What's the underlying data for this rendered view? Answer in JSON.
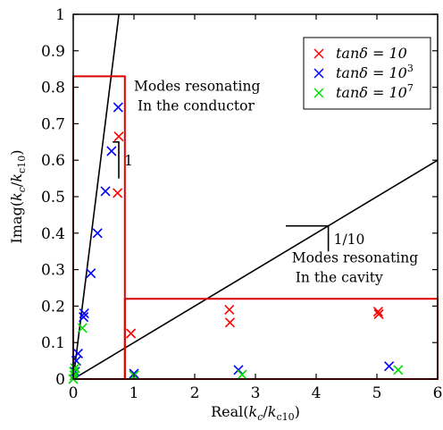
{
  "chart_data": {
    "type": "scatter",
    "xlabel": "Real(k_c/k_c10)",
    "ylabel": "Imag(k_c/k_c10)",
    "xlim": [
      0,
      6
    ],
    "ylim": [
      0,
      1
    ],
    "x_ticks": [
      "0",
      "1",
      "2",
      "3",
      "4",
      "5",
      "6"
    ],
    "y_ticks": [
      "0",
      "0.1",
      "0.2",
      "0.3",
      "0.4",
      "0.5",
      "0.6",
      "0.7",
      "0.8",
      "0.9",
      "1"
    ],
    "legend_position": "top-right",
    "series": [
      {
        "name": "tanδ = 10",
        "name_parts": {
          "base": "tanδ = 10",
          "sup": ""
        },
        "color": "#ff0000",
        "marker": "x",
        "points": [
          [
            0.75,
            0.665
          ],
          [
            0.73,
            0.51
          ],
          [
            0.95,
            0.125
          ],
          [
            2.57,
            0.19
          ],
          [
            2.58,
            0.155
          ],
          [
            5.02,
            0.185
          ],
          [
            5.03,
            0.178
          ],
          [
            0.02,
            0.01
          ]
        ]
      },
      {
        "name": "tanδ = 10^3",
        "name_parts": {
          "base": "tanδ = 10",
          "sup": "3"
        },
        "color": "#0000ff",
        "marker": "x",
        "points": [
          [
            0.74,
            0.745
          ],
          [
            0.63,
            0.625
          ],
          [
            0.53,
            0.515
          ],
          [
            0.4,
            0.4
          ],
          [
            0.29,
            0.29
          ],
          [
            0.18,
            0.18
          ],
          [
            0.17,
            0.17
          ],
          [
            0.08,
            0.07
          ],
          [
            0.05,
            0.05
          ],
          [
            0.03,
            0.02
          ],
          [
            1.0,
            0.015
          ],
          [
            2.72,
            0.025
          ],
          [
            5.2,
            0.035
          ]
        ]
      },
      {
        "name": "tanδ = 10^7",
        "name_parts": {
          "base": "tanδ = 10",
          "sup": "7"
        },
        "color": "#00dd00",
        "marker": "x",
        "points": [
          [
            0.15,
            0.14
          ],
          [
            0.03,
            0.03
          ],
          [
            0.02,
            0.01
          ],
          [
            0.01,
            0.02
          ],
          [
            0.0,
            0.0
          ],
          [
            1.0,
            0.01
          ],
          [
            2.78,
            0.012
          ],
          [
            5.35,
            0.025
          ]
        ]
      }
    ],
    "reference_lines": [
      {
        "slope": 1.33,
        "color": "#000000"
      },
      {
        "slope": 0.1,
        "color": "#000000"
      }
    ],
    "slope_triangles": [
      {
        "label": "1",
        "x0": 0.65,
        "x1": 0.75,
        "y0": 0.55,
        "y1": 0.65
      },
      {
        "label": "1/10",
        "x0": 3.5,
        "x1": 4.2,
        "y0": 0.35,
        "y1": 0.42
      }
    ],
    "highlight_boxes": [
      {
        "x0": 0.0,
        "x1": 0.85,
        "y0": 0.0,
        "y1": 0.83,
        "color": "#e00000"
      },
      {
        "x0": 0.85,
        "x1": 6.0,
        "y0": 0.0,
        "y1": 0.22,
        "color": "#e00000"
      }
    ],
    "annotations": [
      {
        "lines": [
          "Modes resonating",
          "In the conductor"
        ],
        "x": 1.0,
        "y": 0.79
      },
      {
        "lines": [
          "Modes resonating",
          "In the cavity"
        ],
        "x": 3.6,
        "y": 0.32
      }
    ]
  }
}
